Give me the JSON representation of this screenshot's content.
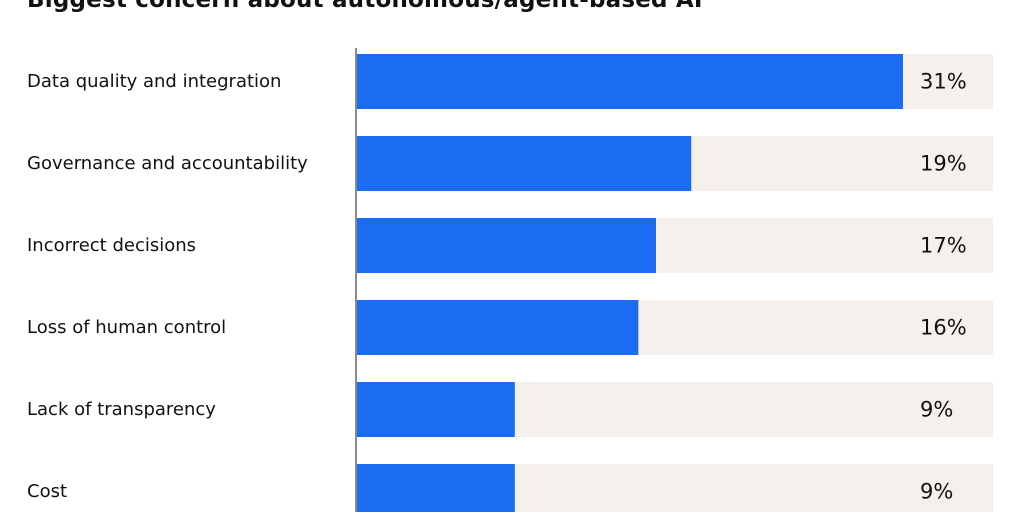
{
  "chart_data": {
    "type": "bar",
    "orientation": "horizontal",
    "title": "Biggest concern about autonomous/agent-based AI",
    "categories": [
      "Data quality and integration",
      "Governance and accountability",
      "Incorrect decisions",
      "Loss of human control",
      "Lack of transparency",
      "Cost"
    ],
    "values": [
      31,
      19,
      17,
      16,
      9,
      9
    ],
    "value_labels": [
      "31%",
      "19%",
      "17%",
      "16%",
      "9%",
      "9%"
    ],
    "unit": "%",
    "xlim": [
      0,
      36
    ],
    "grid": false,
    "colors": {
      "bar": "#1a6cf2",
      "track": "#f5f0ec",
      "axis": "#8a8a8a"
    }
  }
}
